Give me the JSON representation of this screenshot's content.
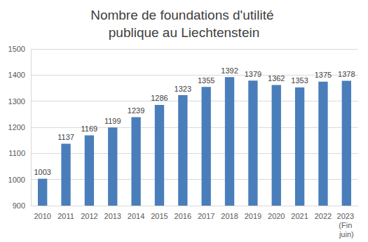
{
  "chart_data": {
    "type": "bar",
    "title": "Nombre de foundations d'utilité publique au Liechtenstein",
    "categories": [
      "2010",
      "2011",
      "2012",
      "2013",
      "2014",
      "2015",
      "2016",
      "2017",
      "2018",
      "2019",
      "2020",
      "2021",
      "2022",
      "2023 (Fin juin)"
    ],
    "values": [
      1003,
      1137,
      1169,
      1199,
      1239,
      1286,
      1323,
      1355,
      1392,
      1379,
      1362,
      1353,
      1375,
      1378
    ],
    "color": "#4a7ebb",
    "ylim": [
      900,
      1500
    ],
    "yticks": [
      900,
      1000,
      1100,
      1200,
      1300,
      1400,
      1500
    ],
    "grid": true,
    "data_labels": true
  }
}
